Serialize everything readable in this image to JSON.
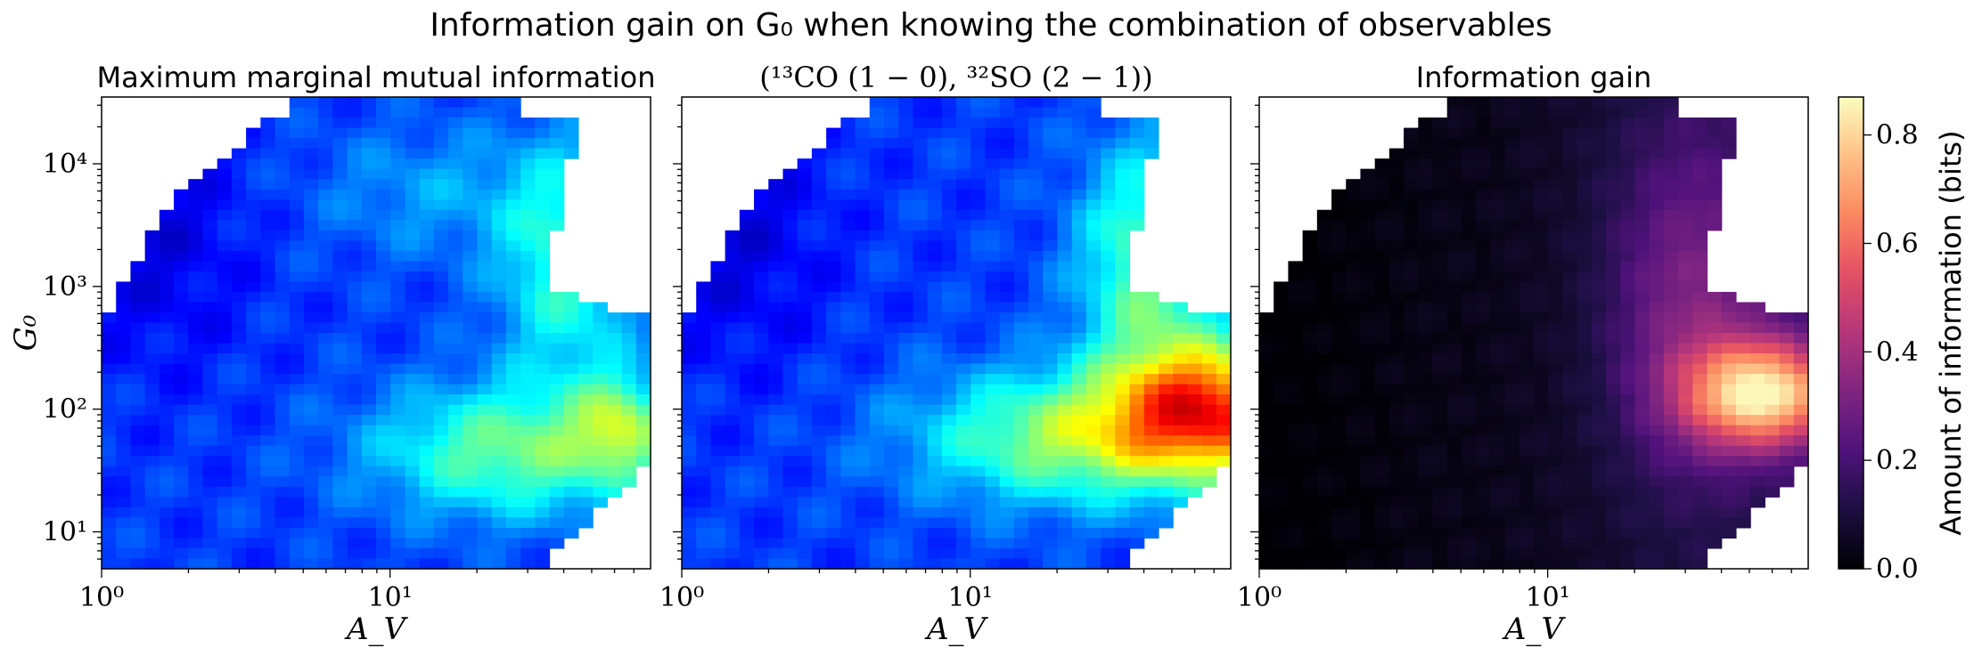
{
  "figure": {
    "suptitle": "Information gain on G₀ when knowing the combination of observables"
  },
  "chart_data": [
    {
      "type": "heatmap",
      "title": "Maximum marginal mutual information",
      "xlabel": "A_V",
      "ylabel": "G₀",
      "x_scale": "log",
      "y_scale": "log",
      "xlim": [
        1,
        80
      ],
      "ylim": [
        5,
        35000
      ],
      "x_ticks": [
        {
          "value": 1,
          "label": "10⁰"
        },
        {
          "value": 10,
          "label": "10¹"
        }
      ],
      "y_ticks": [
        {
          "value": 10,
          "label": "10¹"
        },
        {
          "value": 100,
          "label": "10²"
        },
        {
          "value": 1000,
          "label": "10³"
        },
        {
          "value": 10000,
          "label": "10⁴"
        }
      ],
      "colormap": "jet",
      "grid": false
    },
    {
      "type": "heatmap",
      "title": "(¹³CO (1 − 0), ³²SO (2 − 1))",
      "xlabel": "A_V",
      "x_scale": "log",
      "y_scale": "log",
      "xlim": [
        1,
        80
      ],
      "ylim": [
        5,
        35000
      ],
      "x_ticks": [
        {
          "value": 1,
          "label": "10⁰"
        },
        {
          "value": 10,
          "label": "10¹"
        }
      ],
      "colormap": "jet",
      "grid": false
    },
    {
      "type": "heatmap",
      "title": "Information gain",
      "xlabel": "A_V",
      "x_scale": "log",
      "y_scale": "log",
      "xlim": [
        1,
        80
      ],
      "ylim": [
        5,
        35000
      ],
      "x_ticks": [
        {
          "value": 1,
          "label": "10⁰"
        },
        {
          "value": 10,
          "label": "10¹"
        }
      ],
      "colormap": "magma",
      "grid": false
    }
  ],
  "colorbar": {
    "label": "Amount of information (bits)",
    "range": [
      0,
      0.87
    ],
    "ticks": [
      {
        "value": 0.0,
        "label": "0.0"
      },
      {
        "value": 0.2,
        "label": "0.2"
      },
      {
        "value": 0.4,
        "label": "0.4"
      },
      {
        "value": 0.6,
        "label": "0.6"
      },
      {
        "value": 0.8,
        "label": "0.8"
      }
    ],
    "colormap": "magma"
  }
}
